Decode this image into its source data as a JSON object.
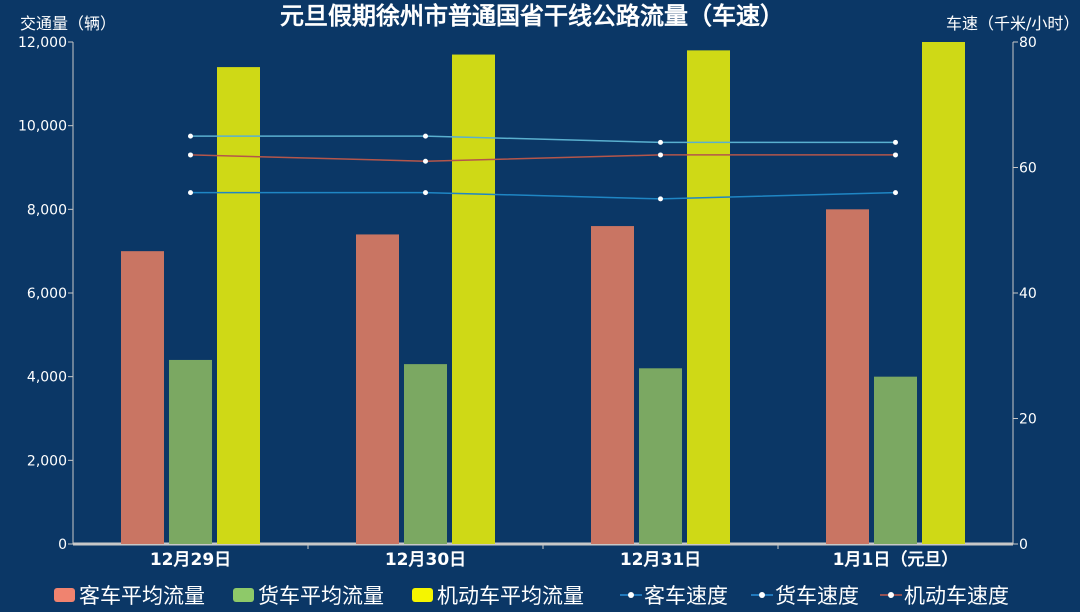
{
  "chart_data": {
    "type": "bar",
    "title": "元旦假期徐州市普通国省干线公路流量（车速）",
    "ylabel": "交通量（辆）",
    "y2label": "车速（千米/小时）",
    "categories": [
      "12月29日",
      "12月30日",
      "12月31日",
      "1月1日（元旦）"
    ],
    "ylim": [
      0,
      12000
    ],
    "yticks": [
      "0",
      "2,000",
      "4,000",
      "6,000",
      "8,000",
      "10,000",
      "12,000"
    ],
    "y2lim": [
      0,
      80
    ],
    "y2ticks": [
      "0",
      "20",
      "40",
      "60",
      "80"
    ],
    "series": [
      {
        "name": "客车平均流量",
        "kind": "bar",
        "axis": "left",
        "color": "#c97563",
        "values": [
          7000,
          7400,
          7600,
          8000
        ]
      },
      {
        "name": "货车平均流量",
        "kind": "bar",
        "axis": "left",
        "color": "#7ba862",
        "values": [
          4400,
          4300,
          4200,
          4000
        ]
      },
      {
        "name": "机动车平均流量",
        "kind": "bar",
        "axis": "left",
        "color": "#cfd916",
        "values": [
          11400,
          11700,
          11800,
          12000
        ]
      },
      {
        "name": "客车速度",
        "kind": "line",
        "axis": "right",
        "color": "#5ab0cf",
        "values": [
          65,
          65,
          64,
          64
        ]
      },
      {
        "name": "货车速度",
        "kind": "line",
        "axis": "right",
        "color": "#1f86c4",
        "values": [
          56,
          56,
          55,
          56
        ]
      },
      {
        "name": "机动车速度",
        "kind": "line",
        "axis": "right",
        "color": "#b4564b",
        "values": [
          62,
          61,
          62,
          62
        ]
      }
    ],
    "legend": {
      "placement": "bottom",
      "swatch_colors": [
        "#f0836f",
        "#8ec969",
        "#f5f500",
        "#2a8fd8",
        "#2a8fd8",
        "#c25a4e"
      ]
    },
    "grid": false
  }
}
